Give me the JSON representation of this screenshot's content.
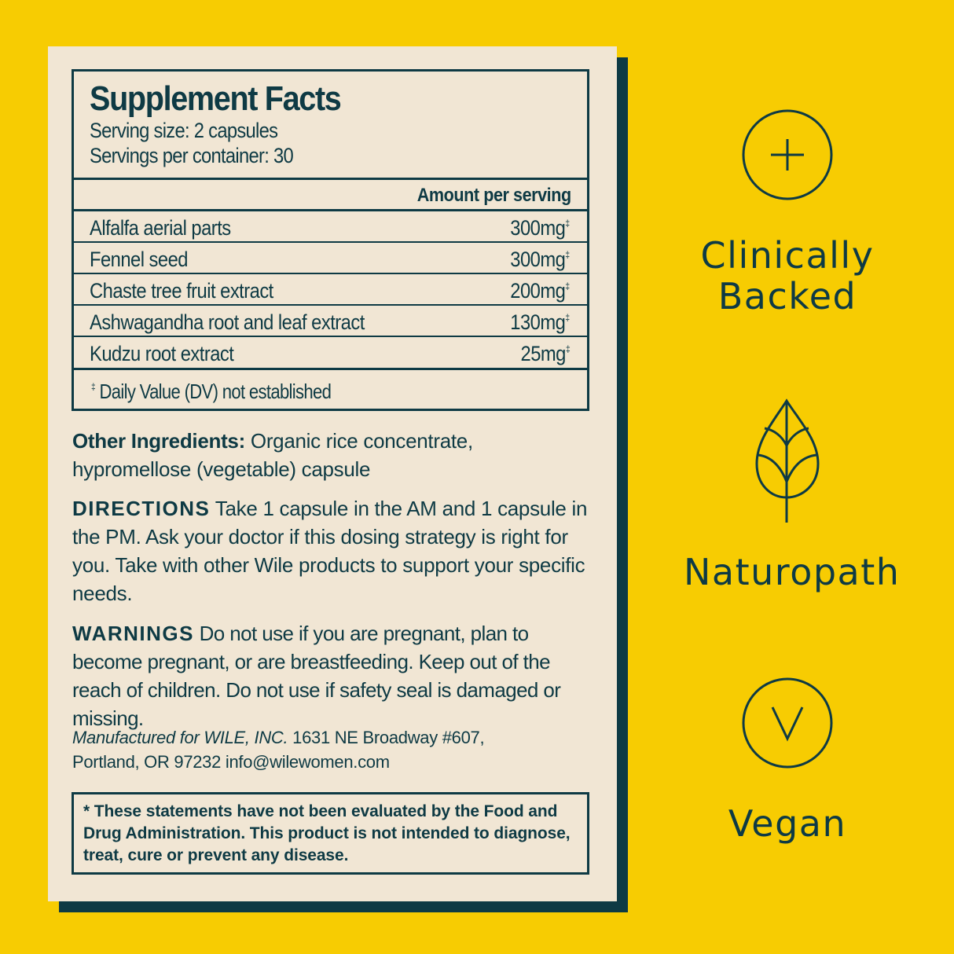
{
  "facts": {
    "title": "Supplement Facts",
    "serving_size": "Serving size: 2 capsules",
    "servings_per_container": "Servings per container: 30",
    "amount_header": "Amount per serving",
    "rows": [
      {
        "name": "Alfalfa aerial parts",
        "amount": "300mg",
        "mark": "‡"
      },
      {
        "name": "Fennel seed",
        "amount": "300mg",
        "mark": "‡"
      },
      {
        "name": "Chaste tree fruit extract",
        "amount": "200mg",
        "mark": "‡"
      },
      {
        "name": "Ashwagandha root and leaf extract",
        "amount": "130mg",
        "mark": "‡"
      },
      {
        "name": "Kudzu root extract",
        "amount": "25mg",
        "mark": "‡"
      }
    ],
    "footnote_mark": "‡",
    "footnote": "Daily Value (DV) not established"
  },
  "other": {
    "label": "Other Ingredients:",
    "text": " Organic rice concentrate, hypromellose (vegetable) capsule"
  },
  "directions": {
    "label": "DIRECTIONS",
    "text": "  Take 1 capsule in the AM and 1 capsule in the PM. Ask your doctor if this dosing strategy is right for you. Take with other Wile products to support your specific needs."
  },
  "warnings": {
    "label": "WARNINGS",
    "text": " Do not use if you are pregnant, plan to become pregnant, or are breastfeeding. Keep out of the reach of children. Do not use if safety seal is damaged or missing."
  },
  "manufacturer": {
    "label": "Manufactured for  WILE, INC.",
    "address1": " 1631 NE Broadway #607,",
    "address2": "Portland, OR 97232  info@wilewomen.com"
  },
  "disclaimer": "* These statements have not been evaluated by the Food and Drug Administration. This product is not intended to diagnose, treat, cure or prevent any disease.",
  "badges": [
    {
      "icon": "plus-circle-icon",
      "line1": "Clinically",
      "line2": "Backed"
    },
    {
      "icon": "leaf-icon",
      "line1": "Naturopath"
    },
    {
      "icon": "v-circle-icon",
      "line1": "Vegan"
    }
  ],
  "colors": {
    "background": "#F7CC02",
    "paper": "#F1E6D4",
    "ink": "#0E3A44"
  }
}
